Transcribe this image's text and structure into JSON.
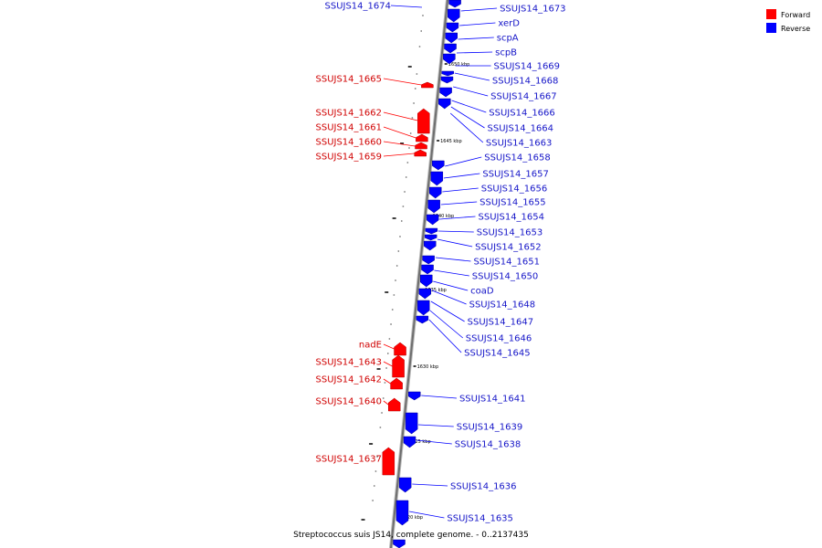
{
  "legend": [
    {
      "label": "Forward",
      "color": "#ff0000"
    },
    {
      "label": "Reverse",
      "color": "#0000ff"
    }
  ],
  "caption": "Streptococcus suis JS14, complete genome. - 0..2137435",
  "genome": {
    "unit": "kbp",
    "tick_labels": [
      "1650 kbp",
      "1645 kbp",
      "1640 kbp",
      "1635 kbp",
      "1630 kbp",
      "1625 kbp",
      "1620 kbp"
    ]
  },
  "genes_forward": [
    {
      "label": "SSUJS14_1665"
    },
    {
      "label": "SSUJS14_1662"
    },
    {
      "label": "SSUJS14_1661"
    },
    {
      "label": "SSUJS14_1660"
    },
    {
      "label": "SSUJS14_1659"
    },
    {
      "label": "nadE"
    },
    {
      "label": "SSUJS14_1643"
    },
    {
      "label": "SSUJS14_1642"
    },
    {
      "label": "SSUJS14_1640"
    },
    {
      "label": "SSUJS14_1637"
    }
  ],
  "genes_reverse": [
    {
      "label": "SSUJS14_1674"
    },
    {
      "label": "SSUJS14_1673"
    },
    {
      "label": "xerD"
    },
    {
      "label": "scpA"
    },
    {
      "label": "scpB"
    },
    {
      "label": "SSUJS14_1669"
    },
    {
      "label": "SSUJS14_1668"
    },
    {
      "label": "SSUJS14_1667"
    },
    {
      "label": "SSUJS14_1666"
    },
    {
      "label": "SSUJS14_1664"
    },
    {
      "label": "SSUJS14_1663"
    },
    {
      "label": "SSUJS14_1658"
    },
    {
      "label": "SSUJS14_1657"
    },
    {
      "label": "SSUJS14_1656"
    },
    {
      "label": "SSUJS14_1655"
    },
    {
      "label": "SSUJS14_1654"
    },
    {
      "label": "SSUJS14_1653"
    },
    {
      "label": "SSUJS14_1652"
    },
    {
      "label": "SSUJS14_1651"
    },
    {
      "label": "SSUJS14_1650"
    },
    {
      "label": "coaD"
    },
    {
      "label": "SSUJS14_1648"
    },
    {
      "label": "SSUJS14_1647"
    },
    {
      "label": "SSUJS14_1646"
    },
    {
      "label": "SSUJS14_1645"
    },
    {
      "label": "SSUJS14_1641"
    },
    {
      "label": "SSUJS14_1639"
    },
    {
      "label": "SSUJS14_1638"
    },
    {
      "label": "SSUJS14_1636"
    },
    {
      "label": "SSUJS14_1635"
    }
  ]
}
